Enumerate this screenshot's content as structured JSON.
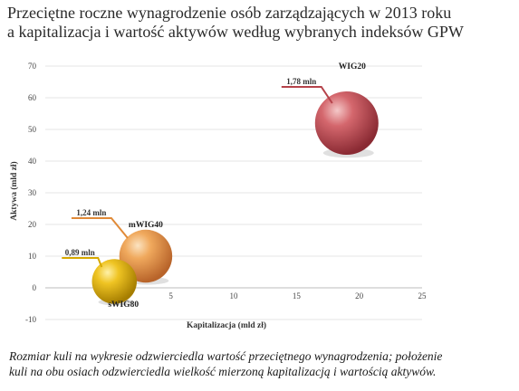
{
  "title": {
    "line1": "Przeciętne roczne wynagrodzenie osób zarządzających w 2013 roku",
    "line2": "a kapitalizacja i wartość aktywów według wybranych indeksów GPW"
  },
  "caption": {
    "line1": "Rozmiar kuli na wykresie odzwierciedla wartość przeciętnego wynagrodzenia; położenie",
    "line2": "kuli na obu osiach odzwierciedla wielkość mierzoną kapitalizacją i wartością aktywów."
  },
  "chart_data": {
    "type": "bubble",
    "xlabel": "Kapitalizacja (mld zł)",
    "ylabel": "Aktywa (mld zł)",
    "xlim": [
      -5,
      25
    ],
    "ylim": [
      -10,
      70
    ],
    "xticks": [
      "0",
      "5",
      "10",
      "15",
      "20",
      "25"
    ],
    "yticks": [
      "-10",
      "0",
      "10",
      "20",
      "30",
      "40",
      "50",
      "60",
      "70"
    ],
    "grid": true,
    "series": [
      {
        "name": "WIG20",
        "x": 19,
        "y": 52,
        "size": 1.78,
        "size_label": "1,78 mln",
        "color": "#b5424a"
      },
      {
        "name": "mWIG40",
        "x": 3,
        "y": 10,
        "size": 1.24,
        "size_label": "1,24 mln",
        "color": "#e08a38"
      },
      {
        "name": "sWIG80",
        "x": 0.5,
        "y": 2,
        "size": 0.89,
        "size_label": "0,89 mln",
        "color": "#d6a800"
      }
    ]
  }
}
